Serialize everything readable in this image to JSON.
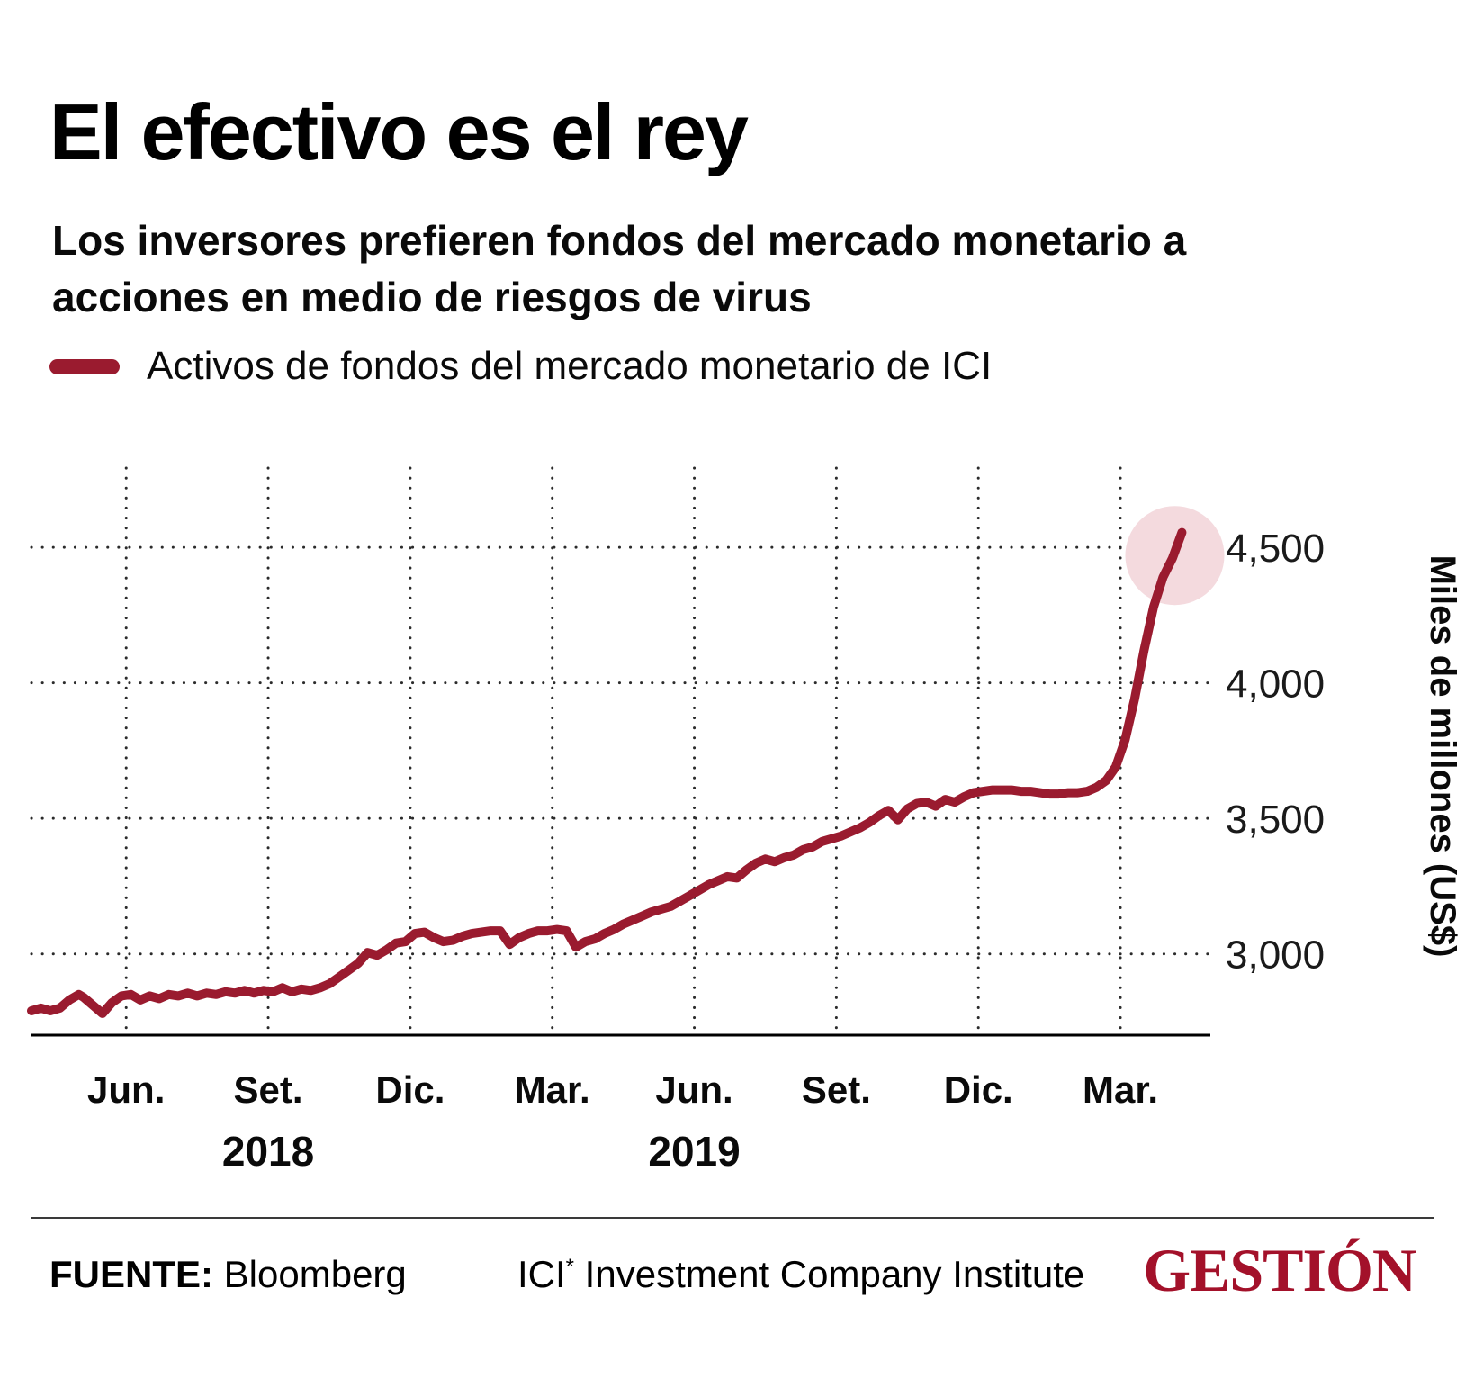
{
  "header": {
    "title": "El efectivo es el rey",
    "subtitle": "Los inversores prefieren fondos del mercado monetario a acciones en medio de riesgos de virus"
  },
  "legend": {
    "label": "Activos de fondos del mercado monetario de ICI",
    "color": "#9a1b2f"
  },
  "chart_data": {
    "type": "line",
    "title": "El efectivo es el rey",
    "series_name": "Activos de fondos del mercado monetario de ICI",
    "ylabel": "Miles de millones (US$)",
    "xlabel": "",
    "x_unit": "months since Apr. 2018",
    "line_color": "#9a1b2f",
    "grid": "dotted",
    "xlim": [
      0,
      24.9
    ],
    "ylim": [
      2700,
      4660
    ],
    "x_ticks": [
      {
        "t": 2,
        "label": "Jun."
      },
      {
        "t": 5,
        "label": "Set."
      },
      {
        "t": 8,
        "label": "Dic."
      },
      {
        "t": 11,
        "label": "Mar."
      },
      {
        "t": 14,
        "label": "Jun."
      },
      {
        "t": 17,
        "label": "Set."
      },
      {
        "t": 20,
        "label": "Dic."
      },
      {
        "t": 23,
        "label": "Mar."
      }
    ],
    "year_labels": [
      {
        "t": 5,
        "label": "2018"
      },
      {
        "t": 14,
        "label": "2019"
      }
    ],
    "y_ticks": [
      {
        "v": 3000,
        "label": "3,000"
      },
      {
        "v": 3500,
        "label": "3,500"
      },
      {
        "v": 4000,
        "label": "4,000"
      },
      {
        "v": 4500,
        "label": "4,500"
      }
    ],
    "highlight": {
      "t": 24.15,
      "value": 4470,
      "radius": 55,
      "color": "#f4dade"
    },
    "points": [
      [
        0.0,
        2790
      ],
      [
        0.2,
        2800
      ],
      [
        0.4,
        2790
      ],
      [
        0.6,
        2800
      ],
      [
        0.8,
        2830
      ],
      [
        1.0,
        2850
      ],
      [
        1.1,
        2840
      ],
      [
        1.3,
        2810
      ],
      [
        1.5,
        2780
      ],
      [
        1.7,
        2820
      ],
      [
        1.9,
        2845
      ],
      [
        2.1,
        2850
      ],
      [
        2.3,
        2830
      ],
      [
        2.5,
        2845
      ],
      [
        2.7,
        2835
      ],
      [
        2.9,
        2850
      ],
      [
        3.1,
        2845
      ],
      [
        3.3,
        2855
      ],
      [
        3.5,
        2845
      ],
      [
        3.7,
        2855
      ],
      [
        3.9,
        2850
      ],
      [
        4.1,
        2860
      ],
      [
        4.3,
        2855
      ],
      [
        4.5,
        2865
      ],
      [
        4.7,
        2855
      ],
      [
        4.9,
        2865
      ],
      [
        5.1,
        2860
      ],
      [
        5.3,
        2875
      ],
      [
        5.5,
        2860
      ],
      [
        5.7,
        2870
      ],
      [
        5.9,
        2865
      ],
      [
        6.1,
        2875
      ],
      [
        6.3,
        2890
      ],
      [
        6.5,
        2915
      ],
      [
        6.7,
        2940
      ],
      [
        6.9,
        2965
      ],
      [
        7.1,
        3005
      ],
      [
        7.3,
        2995
      ],
      [
        7.5,
        3015
      ],
      [
        7.7,
        3040
      ],
      [
        7.9,
        3045
      ],
      [
        8.1,
        3075
      ],
      [
        8.3,
        3080
      ],
      [
        8.5,
        3060
      ],
      [
        8.7,
        3045
      ],
      [
        8.9,
        3050
      ],
      [
        9.1,
        3065
      ],
      [
        9.3,
        3075
      ],
      [
        9.5,
        3080
      ],
      [
        9.7,
        3085
      ],
      [
        9.9,
        3085
      ],
      [
        10.1,
        3035
      ],
      [
        10.3,
        3060
      ],
      [
        10.5,
        3075
      ],
      [
        10.7,
        3085
      ],
      [
        10.9,
        3085
      ],
      [
        11.1,
        3090
      ],
      [
        11.3,
        3085
      ],
      [
        11.5,
        3025
      ],
      [
        11.7,
        3045
      ],
      [
        11.9,
        3055
      ],
      [
        12.1,
        3075
      ],
      [
        12.3,
        3090
      ],
      [
        12.5,
        3110
      ],
      [
        12.7,
        3125
      ],
      [
        12.9,
        3140
      ],
      [
        13.1,
        3155
      ],
      [
        13.3,
        3165
      ],
      [
        13.5,
        3175
      ],
      [
        13.7,
        3195
      ],
      [
        13.9,
        3215
      ],
      [
        14.1,
        3235
      ],
      [
        14.3,
        3255
      ],
      [
        14.5,
        3270
      ],
      [
        14.7,
        3285
      ],
      [
        14.9,
        3280
      ],
      [
        15.1,
        3310
      ],
      [
        15.3,
        3335
      ],
      [
        15.5,
        3350
      ],
      [
        15.7,
        3340
      ],
      [
        15.9,
        3355
      ],
      [
        16.1,
        3365
      ],
      [
        16.3,
        3385
      ],
      [
        16.5,
        3395
      ],
      [
        16.7,
        3415
      ],
      [
        16.9,
        3425
      ],
      [
        17.1,
        3435
      ],
      [
        17.3,
        3450
      ],
      [
        17.5,
        3465
      ],
      [
        17.7,
        3485
      ],
      [
        17.9,
        3510
      ],
      [
        18.1,
        3530
      ],
      [
        18.3,
        3495
      ],
      [
        18.5,
        3535
      ],
      [
        18.7,
        3555
      ],
      [
        18.9,
        3560
      ],
      [
        19.1,
        3545
      ],
      [
        19.3,
        3570
      ],
      [
        19.5,
        3560
      ],
      [
        19.7,
        3580
      ],
      [
        19.9,
        3595
      ],
      [
        20.1,
        3600
      ],
      [
        20.3,
        3605
      ],
      [
        20.5,
        3605
      ],
      [
        20.7,
        3605
      ],
      [
        20.9,
        3600
      ],
      [
        21.1,
        3600
      ],
      [
        21.3,
        3595
      ],
      [
        21.5,
        3590
      ],
      [
        21.7,
        3590
      ],
      [
        21.9,
        3595
      ],
      [
        22.1,
        3595
      ],
      [
        22.3,
        3600
      ],
      [
        22.5,
        3615
      ],
      [
        22.7,
        3640
      ],
      [
        22.9,
        3690
      ],
      [
        23.1,
        3790
      ],
      [
        23.3,
        3940
      ],
      [
        23.5,
        4120
      ],
      [
        23.7,
        4280
      ],
      [
        23.9,
        4390
      ],
      [
        24.1,
        4460
      ],
      [
        24.3,
        4555
      ]
    ]
  },
  "footer": {
    "source_label": "FUENTE:",
    "source_value": "Bloomberg",
    "note_prefix": "ICI",
    "note_sup": "*",
    "note_rest": " Investment Company Institute",
    "brand": "GESTIÓN",
    "brand_color": "#a3112a"
  }
}
